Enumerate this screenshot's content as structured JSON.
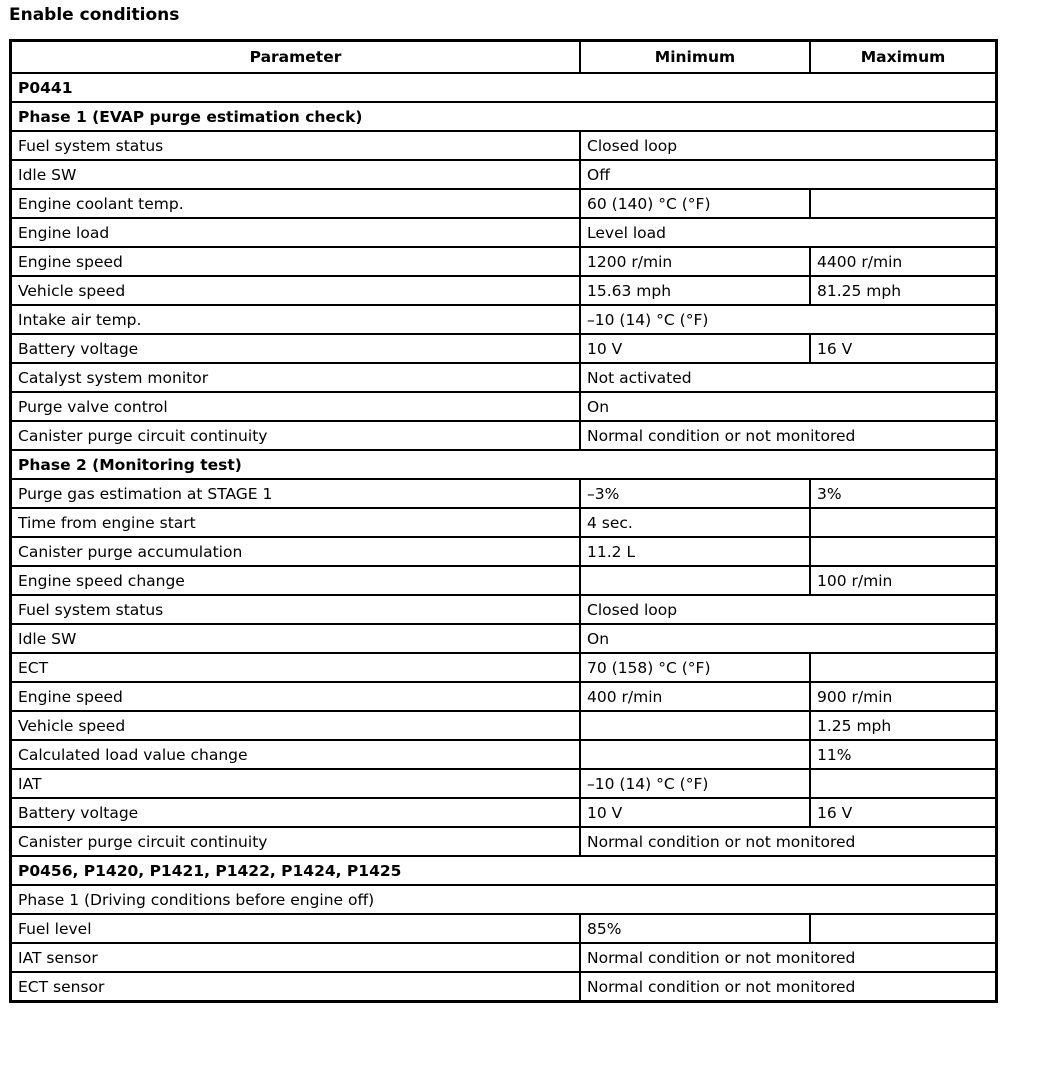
{
  "title": "Enable conditions",
  "headers": [
    "Parameter",
    "Minimum",
    "Maximum"
  ],
  "rows": [
    {
      "section": "P0441",
      "bold": true
    },
    {
      "section": "Phase 1 (EVAP purge estimation check)",
      "bold": true
    },
    {
      "param": "Fuel system status",
      "min": "Closed loop",
      "span": true
    },
    {
      "param": "Idle SW",
      "min": "Off",
      "span": true
    },
    {
      "param": "Engine coolant temp.",
      "min": "60 (140) °C (°F)",
      "max": ""
    },
    {
      "param": "Engine load",
      "min": "Level load",
      "span": true
    },
    {
      "param": "Engine speed",
      "min": "1200 r/min",
      "max": "4400 r/min"
    },
    {
      "param": "Vehicle speed",
      "min": "15.63 mph",
      "max": "81.25 mph"
    },
    {
      "param": "Intake air temp.",
      "min": "–10 (14) °C (°F)",
      "span": true
    },
    {
      "param": "Battery voltage",
      "min": "10 V",
      "max": "16 V"
    },
    {
      "param": "Catalyst system monitor",
      "min": "Not activated",
      "span": true
    },
    {
      "param": "Purge valve control",
      "min": "On",
      "span": true
    },
    {
      "param": "Canister purge circuit continuity",
      "min": "Normal condition or not monitored",
      "span": true
    },
    {
      "section": "Phase 2 (Monitoring test)",
      "bold": true
    },
    {
      "param": "Purge gas estimation at STAGE 1",
      "min": "–3%",
      "max": "3%"
    },
    {
      "param": "Time from engine start",
      "min": "4 sec.",
      "max": ""
    },
    {
      "param": "Canister purge accumulation",
      "min": "11.2 L",
      "max": ""
    },
    {
      "param": "Engine speed change",
      "min": "",
      "max": "100 r/min"
    },
    {
      "param": "Fuel system status",
      "min": "Closed loop",
      "span": true
    },
    {
      "param": "Idle SW",
      "min": "On",
      "span": true
    },
    {
      "param": "ECT",
      "min": "70 (158) °C (°F)",
      "max": ""
    },
    {
      "param": "Engine speed",
      "min": "400 r/min",
      "max": "900 r/min"
    },
    {
      "param": "Vehicle speed",
      "min": "",
      "max": "1.25 mph"
    },
    {
      "param": "Calculated load value change",
      "min": "",
      "max": "11%"
    },
    {
      "param": "IAT",
      "min": "–10 (14) °C (°F)",
      "max": ""
    },
    {
      "param": "Battery voltage",
      "min": "10 V",
      "max": "16 V"
    },
    {
      "param": "Canister purge circuit continuity",
      "min": "Normal condition or not monitored",
      "span": true
    },
    {
      "section": "P0456, P1420, P1421, P1422, P1424, P1425",
      "bold": true
    },
    {
      "section": "Phase 1 (Driving conditions before engine off)",
      "bold": false
    },
    {
      "param": "Fuel level",
      "min": "85%",
      "max": ""
    },
    {
      "param": "IAT sensor",
      "min": "Normal condition or not monitored",
      "span": true
    },
    {
      "param": "ECT sensor",
      "min": "Normal condition or not monitored",
      "span": true
    }
  ]
}
